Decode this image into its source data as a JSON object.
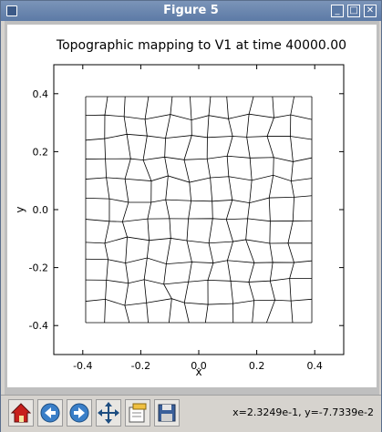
{
  "window": {
    "title": "Figure 5"
  },
  "titlebar_buttons": {
    "minimize": "_",
    "maximize": "□",
    "close": "✕"
  },
  "toolbar": {
    "buttons": [
      {
        "name": "home-button",
        "icon": "home-icon"
      },
      {
        "name": "back-button",
        "icon": "arrow-left-icon"
      },
      {
        "name": "forward-button",
        "icon": "arrow-right-icon"
      },
      {
        "name": "pan-button",
        "icon": "move-icon"
      },
      {
        "name": "subplots-button",
        "icon": "subplots-icon"
      },
      {
        "name": "save-button",
        "icon": "floppy-icon"
      }
    ],
    "coordinates": "x=2.3249e-1, y=-7.7339e-2"
  },
  "chart_data": {
    "type": "line",
    "title": "Topographic mapping to V1 at time 40000.00",
    "xlabel": "x",
    "ylabel": "y",
    "xlim": [
      -0.5,
      0.5
    ],
    "ylim": [
      -0.5,
      0.5
    ],
    "xticks": [
      "-0.4",
      "-0.2",
      "0.0",
      "0.2",
      "0.4"
    ],
    "yticks": [
      "-0.4",
      "-0.2",
      "0.0",
      "0.2",
      "0.4"
    ],
    "grid_cols": 12,
    "grid_rows": 12,
    "grid_range": [
      -0.39,
      0.39
    ],
    "colors": {
      "mesh": "#000000",
      "axes": "#000000"
    }
  }
}
